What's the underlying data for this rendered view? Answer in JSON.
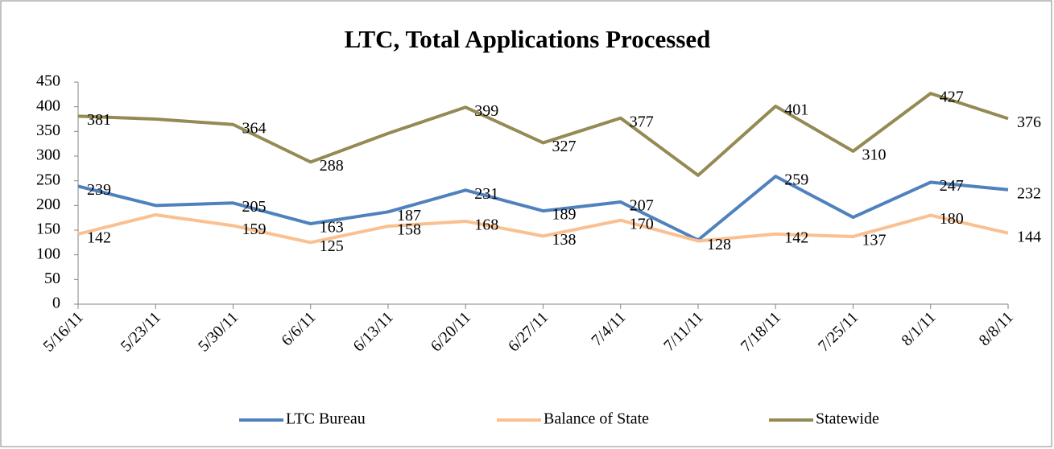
{
  "chart_data": {
    "type": "line",
    "title": "LTC, Total Applications Processed",
    "categories": [
      "5/16/11",
      "5/23/11",
      "5/30/11",
      "6/6/11",
      "6/13/11",
      "6/20/11",
      "6/27/11",
      "7/4/11",
      "7/11/11",
      "7/18/11",
      "7/25/11",
      "8/1/11",
      "8/8/11"
    ],
    "series": [
      {
        "name": "LTC Bureau",
        "color": "#4f81bd",
        "values": [
          239,
          200,
          205,
          163,
          187,
          231,
          189,
          207,
          130,
          259,
          176,
          247,
          232
        ],
        "value_labels": [
          "239",
          null,
          "205",
          "163",
          "187",
          "231",
          "189",
          "207",
          null,
          "259",
          null,
          "247",
          "232"
        ]
      },
      {
        "name": "Balance of State",
        "color": "#fac090",
        "values": [
          142,
          181,
          159,
          125,
          158,
          168,
          138,
          170,
          128,
          142,
          137,
          180,
          144
        ],
        "value_labels": [
          "142",
          null,
          "159",
          "125",
          "158",
          "168",
          "138",
          "170",
          "128",
          "142",
          "137",
          "180",
          "144"
        ]
      },
      {
        "name": "Statewide",
        "color": "#948a54",
        "values": [
          381,
          375,
          364,
          288,
          346,
          399,
          327,
          377,
          261,
          401,
          310,
          427,
          376
        ],
        "value_labels": [
          "381",
          null,
          "364",
          "288",
          null,
          "399",
          "327",
          "377",
          null,
          "401",
          "310",
          "427",
          "376"
        ]
      }
    ],
    "ylim": [
      0,
      450
    ],
    "yticks": [
      0,
      50,
      100,
      150,
      200,
      250,
      300,
      350,
      400,
      450
    ],
    "grid": false,
    "legend": "bottom"
  }
}
